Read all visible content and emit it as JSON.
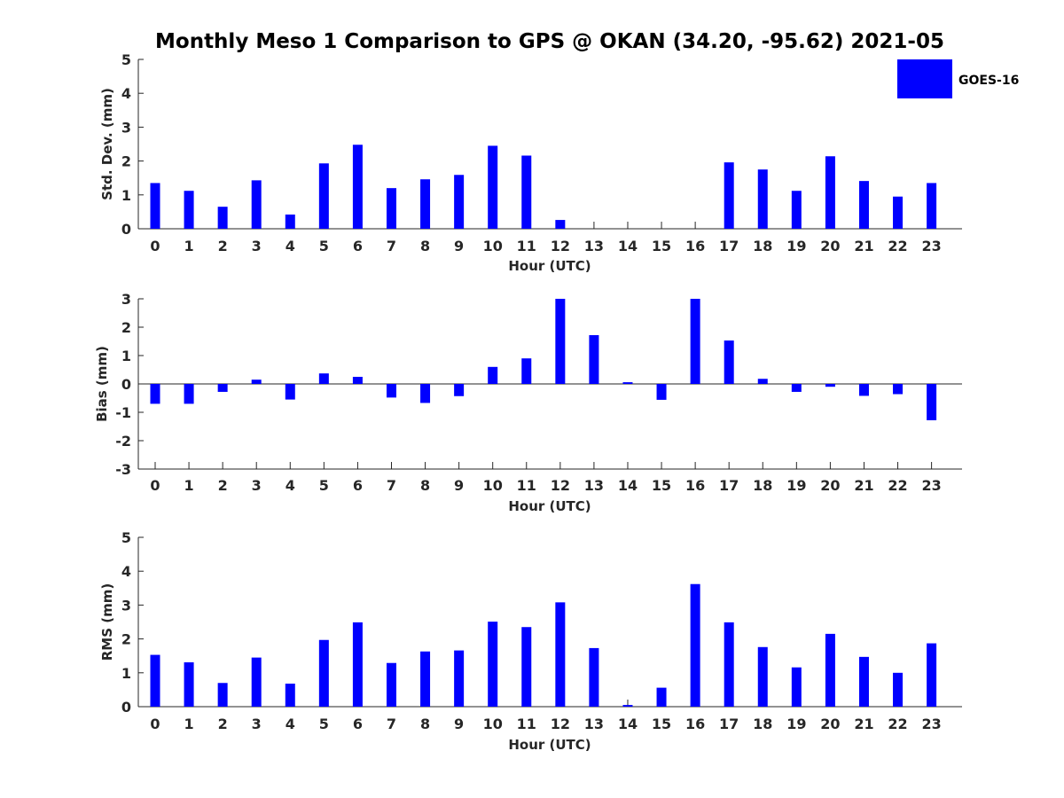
{
  "colors": {
    "bar": "#0000ff",
    "axis": "#262626",
    "background": "#ffffff"
  },
  "chart_data": {
    "type": "bar",
    "title": "Monthly Meso 1 Comparison to GPS @ OKAN (34.20, -95.62) 2021-05",
    "legend": {
      "label": "GOES-16",
      "placement": "top-right"
    },
    "panels": [
      {
        "id": "stddev",
        "ylabel": "Std. Dev. (mm)",
        "xlabel": "Hour (UTC)",
        "ylim": [
          0,
          5
        ],
        "yticks": [
          0,
          1,
          2,
          3,
          4,
          5
        ],
        "categories": [
          "0",
          "1",
          "2",
          "3",
          "4",
          "5",
          "6",
          "7",
          "8",
          "9",
          "10",
          "11",
          "12",
          "13",
          "14",
          "15",
          "16",
          "17",
          "18",
          "19",
          "20",
          "21",
          "22",
          "23"
        ],
        "values": [
          1.35,
          1.12,
          0.65,
          1.43,
          0.42,
          1.93,
          2.48,
          1.2,
          1.46,
          1.59,
          2.45,
          2.16,
          0.26,
          0,
          0,
          0,
          0,
          1.96,
          1.75,
          1.12,
          2.14,
          1.41,
          0.95,
          1.35
        ]
      },
      {
        "id": "bias",
        "ylabel": "Bias (mm)",
        "xlabel": "Hour (UTC)",
        "ylim": [
          -3,
          3
        ],
        "yticks": [
          -3,
          -2,
          -1,
          0,
          1,
          2,
          3
        ],
        "categories": [
          "0",
          "1",
          "2",
          "3",
          "4",
          "5",
          "6",
          "7",
          "8",
          "9",
          "10",
          "11",
          "12",
          "13",
          "14",
          "15",
          "16",
          "17",
          "18",
          "19",
          "20",
          "21",
          "22",
          "23"
        ],
        "values": [
          -0.7,
          -0.7,
          -0.28,
          0.15,
          -0.55,
          0.37,
          0.25,
          -0.48,
          -0.67,
          -0.43,
          0.6,
          0.9,
          3.0,
          1.72,
          0.06,
          -0.56,
          3.0,
          1.53,
          0.18,
          -0.28,
          -0.1,
          -0.42,
          -0.36,
          -1.28
        ]
      },
      {
        "id": "rms",
        "ylabel": "RMS (mm)",
        "xlabel": "Hour (UTC)",
        "ylim": [
          0,
          5
        ],
        "yticks": [
          0,
          1,
          2,
          3,
          4,
          5
        ],
        "categories": [
          "0",
          "1",
          "2",
          "3",
          "4",
          "5",
          "6",
          "7",
          "8",
          "9",
          "10",
          "11",
          "12",
          "13",
          "14",
          "15",
          "16",
          "17",
          "18",
          "19",
          "20",
          "21",
          "22",
          "23"
        ],
        "values": [
          1.53,
          1.31,
          0.7,
          1.45,
          0.68,
          1.97,
          2.49,
          1.29,
          1.63,
          1.66,
          2.51,
          2.35,
          3.08,
          1.73,
          0.05,
          0.56,
          3.62,
          2.49,
          1.76,
          1.16,
          2.15,
          1.47,
          1.0,
          1.87
        ]
      }
    ]
  }
}
